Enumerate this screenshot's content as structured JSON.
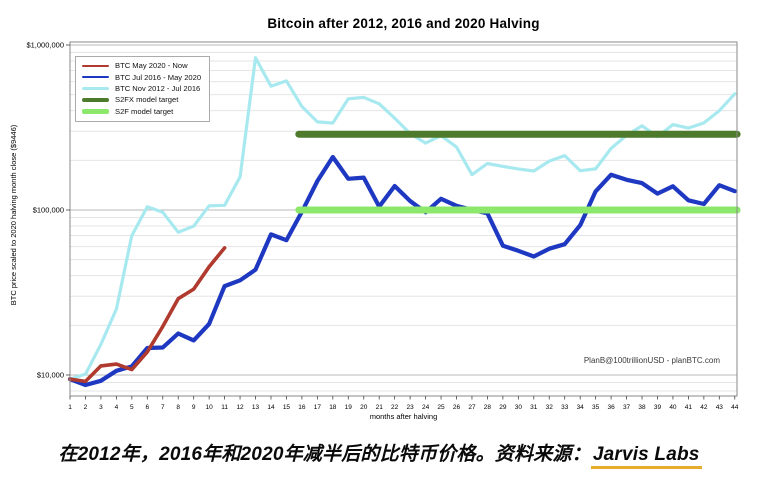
{
  "watermark": "PlanB@100trillionUSD - planBTC.com",
  "caption": {
    "text": "在2012年，2016年和2020年减半后的比特币价格。资料来源：",
    "source_label": "Jarvis Labs",
    "underline_color": "#e5ac2e"
  },
  "chart_data": {
    "type": "line",
    "title": "Bitcoin after 2012, 2016 and 2020 Halving",
    "xlabel": "months after halving",
    "ylabel": "BTC price scaled to 2020 halving month close ($9446)",
    "y_scale": "log",
    "y_range": [
      7500,
      1045000
    ],
    "x_range": [
      1,
      44
    ],
    "grid": "horizontal-log-minor-and-major",
    "legend_position": "upper-left",
    "xticks": [
      1,
      2,
      3,
      4,
      5,
      6,
      7,
      8,
      9,
      10,
      11,
      12,
      13,
      14,
      15,
      16,
      17,
      18,
      19,
      20,
      21,
      22,
      23,
      24,
      25,
      26,
      27,
      28,
      29,
      30,
      31,
      32,
      33,
      34,
      35,
      36,
      37,
      38,
      39,
      40,
      41,
      42,
      43,
      44
    ],
    "yticks": [
      {
        "value": 10000,
        "label": "$10,000"
      },
      {
        "value": 100000,
        "label": "$100,000"
      },
      {
        "value": 1000000,
        "label": "$1,000,000"
      }
    ],
    "series": [
      {
        "name": "BTC May 2020 - Now",
        "color": "#b03a2e",
        "width": 3.6,
        "x_start": 1,
        "values": [
          9446,
          9140,
          11350,
          11650,
          10780,
          13800,
          19710,
          28990,
          33140,
          45240,
          58920
        ]
      },
      {
        "name": "BTC Jul 2016 - May 2020",
        "color": "#1e38c2",
        "width": 4.2,
        "x_start": 1,
        "values": [
          9446,
          8700,
          9220,
          10600,
          11280,
          14570,
          14670,
          17840,
          16210,
          20380,
          34570,
          37510,
          43480,
          71120,
          65610,
          97560,
          149960,
          209590,
          154560,
          157240,
          104920,
          139730,
          113320,
          96830,
          116970,
          106020,
          100200,
          95530,
          60750,
          56590,
          52280,
          58290,
          62080,
          80910,
          129650,
          163570,
          152500,
          145630,
          125630,
          139110,
          114460,
          108770,
          141390,
          130030
        ]
      },
      {
        "name": "BTC Nov 2012 - Jul 2016",
        "color": "#a8e9f0",
        "width": 3.2,
        "x_start": 1,
        "values": [
          9446,
          10120,
          15350,
          25110,
          69970,
          104720,
          96870,
          73330,
          79880,
          106050,
          106720,
          158870,
          837090,
          561740,
          606150,
          423770,
          342030,
          336650,
          472250,
          481340,
          440440,
          360040,
          291020,
          254450,
          282110,
          240820,
          163550,
          191230,
          183680,
          177450,
          172280,
          197860,
          213790,
          173030,
          177540,
          236290,
          283780,
          323830,
          278120,
          329190,
          313420,
          337180,
          399650,
          506420
        ]
      },
      {
        "name": "S2FX model target",
        "type": "hline",
        "color": "#4e7a2b",
        "width": 7,
        "value": 288000,
        "x_start": 15.8,
        "x_end": 44.15
      },
      {
        "name": "S2F model target",
        "type": "hline",
        "color": "#8ce86b",
        "width": 7,
        "value": 100000,
        "x_start": 15.8,
        "x_end": 44.15
      }
    ]
  }
}
